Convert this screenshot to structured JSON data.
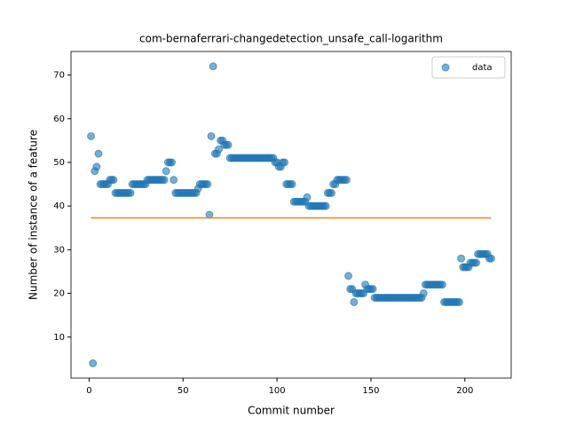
{
  "chart_data": {
    "type": "scatter",
    "title": "com-bernaferrari-changedetection_unsafe_call-logarithm",
    "x_label": "Commit number",
    "y_label": "Number of instance of a feature",
    "xlim": [
      -9.65,
      224.65
    ],
    "ylim": [
      0.6,
      75.4
    ],
    "xticks": [
      0,
      50,
      100,
      150,
      200
    ],
    "yticks": [
      10,
      20,
      30,
      40,
      50,
      60,
      70
    ],
    "legend": "upper right",
    "series": [
      {
        "name": "data",
        "color": "#1f77b4",
        "x": [
          1,
          2,
          3,
          4,
          5,
          6,
          7,
          8,
          9,
          10,
          11,
          12,
          13,
          14,
          15,
          16,
          17,
          18,
          19,
          20,
          21,
          22,
          23,
          24,
          25,
          26,
          27,
          28,
          29,
          30,
          31,
          32,
          33,
          34,
          35,
          36,
          37,
          38,
          39,
          40,
          41,
          42,
          43,
          44,
          45,
          46,
          47,
          48,
          49,
          50,
          51,
          52,
          53,
          54,
          55,
          56,
          57,
          58,
          59,
          60,
          61,
          62,
          63,
          64,
          65,
          66,
          67,
          68,
          69,
          70,
          71,
          72,
          73,
          74,
          75,
          76,
          77,
          78,
          79,
          80,
          81,
          82,
          83,
          84,
          85,
          86,
          87,
          88,
          89,
          90,
          91,
          92,
          93,
          94,
          95,
          96,
          97,
          98,
          99,
          100,
          101,
          102,
          103,
          104,
          105,
          106,
          107,
          108,
          109,
          110,
          111,
          112,
          113,
          114,
          115,
          116,
          117,
          118,
          119,
          120,
          121,
          122,
          123,
          124,
          125,
          126,
          127,
          128,
          129,
          130,
          131,
          132,
          133,
          134,
          135,
          136,
          137,
          138,
          139,
          140,
          141,
          142,
          143,
          144,
          145,
          146,
          147,
          148,
          149,
          150,
          151,
          152,
          153,
          154,
          155,
          156,
          157,
          158,
          159,
          160,
          161,
          162,
          163,
          164,
          165,
          166,
          167,
          168,
          169,
          170,
          171,
          172,
          173,
          174,
          175,
          176,
          177,
          178,
          179,
          180,
          181,
          182,
          183,
          184,
          185,
          186,
          187,
          188,
          189,
          190,
          191,
          192,
          193,
          194,
          195,
          196,
          197,
          198,
          199,
          200,
          201,
          202,
          203,
          204,
          205,
          206,
          207,
          208,
          209,
          210,
          211,
          212,
          213,
          214
        ],
        "values": [
          56,
          4,
          48,
          49,
          52,
          45,
          45,
          45,
          45,
          45,
          46,
          46,
          46,
          43,
          43,
          43,
          43,
          43,
          43,
          43,
          43,
          43,
          45,
          45,
          45,
          45,
          45,
          45,
          45,
          45,
          46,
          46,
          46,
          46,
          46,
          46,
          46,
          46,
          46,
          46,
          48,
          50,
          50,
          50,
          46,
          43,
          43,
          43,
          43,
          43,
          43,
          43,
          43,
          43,
          43,
          43,
          43,
          44,
          45,
          45,
          45,
          45,
          45,
          38,
          56,
          72,
          52,
          52,
          53,
          55,
          55,
          54,
          54,
          54,
          51,
          51,
          51,
          51,
          51,
          51,
          51,
          51,
          51,
          51,
          51,
          51,
          51,
          51,
          51,
          51,
          51,
          51,
          51,
          51,
          51,
          51,
          51,
          51,
          50,
          50,
          49,
          49,
          50,
          50,
          45,
          45,
          45,
          45,
          41,
          41,
          41,
          41,
          41,
          41,
          41,
          42,
          40,
          40,
          40,
          40,
          40,
          40,
          40,
          40,
          40,
          40,
          43,
          43,
          43,
          45,
          45,
          46,
          46,
          46,
          46,
          46,
          46,
          24,
          21,
          21,
          18,
          20,
          20,
          20,
          20,
          20,
          22,
          21,
          21,
          21,
          21,
          19,
          19,
          19,
          19,
          19,
          19,
          19,
          19,
          19,
          19,
          19,
          19,
          19,
          19,
          19,
          19,
          19,
          19,
          19,
          19,
          19,
          19,
          19,
          19,
          19,
          19,
          20,
          22,
          22,
          22,
          22,
          22,
          22,
          22,
          22,
          22,
          22,
          18,
          18,
          18,
          18,
          18,
          18,
          18,
          18,
          18,
          28,
          26,
          26,
          26,
          26,
          27,
          27,
          27,
          27,
          29,
          29,
          29,
          29,
          29,
          29,
          28,
          28
        ]
      }
    ],
    "mean_line": {
      "color": "#ff7f0e",
      "x": [
        1,
        214
      ],
      "values": [
        37.3,
        37.3
      ]
    }
  }
}
